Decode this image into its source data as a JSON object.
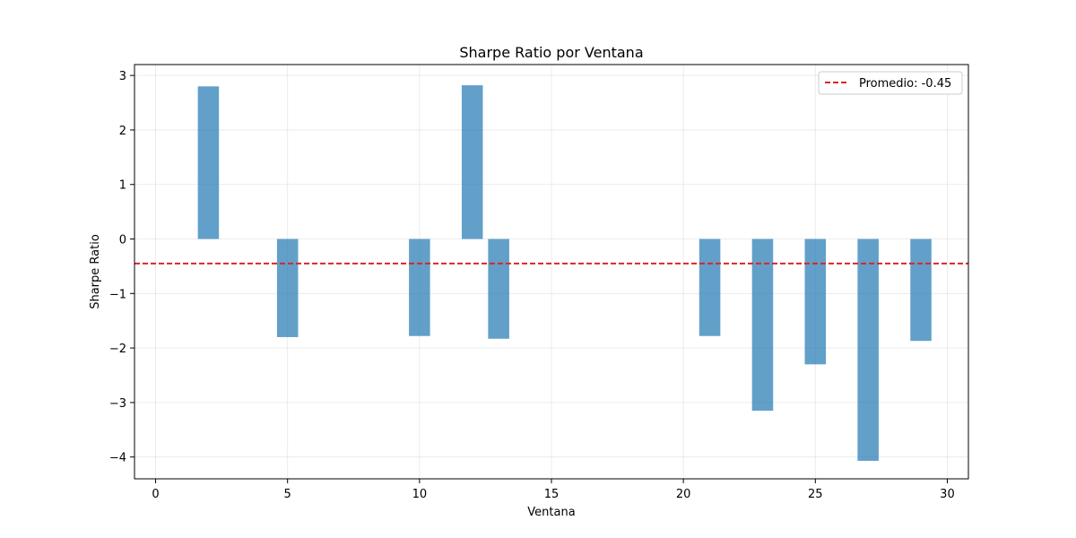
{
  "chart_data": {
    "type": "bar",
    "title": "Sharpe Ratio por Ventana",
    "xlabel": "Ventana",
    "ylabel": "Sharpe Ratio",
    "xlim": [
      -0.8,
      30.8
    ],
    "ylim": [
      -4.4,
      3.2
    ],
    "xticks": [
      0,
      5,
      10,
      15,
      20,
      25,
      30
    ],
    "yticks": [
      -4,
      -3,
      -2,
      -1,
      0,
      1,
      2,
      3
    ],
    "grid": true,
    "bar_color": "#1f77b4",
    "bar_alpha": 0.7,
    "bar_width": 0.8,
    "x": [
      2,
      5,
      10,
      12,
      13,
      21,
      23,
      25,
      27,
      29
    ],
    "values": [
      2.8,
      -1.8,
      -1.78,
      2.82,
      -1.83,
      -1.78,
      -3.15,
      -2.3,
      -4.07,
      -1.87
    ],
    "mean_line": {
      "value": -0.45,
      "label": "Promedio: -0.45",
      "color": "#d62728",
      "style": "dashed"
    },
    "legend_position": "top-right"
  }
}
